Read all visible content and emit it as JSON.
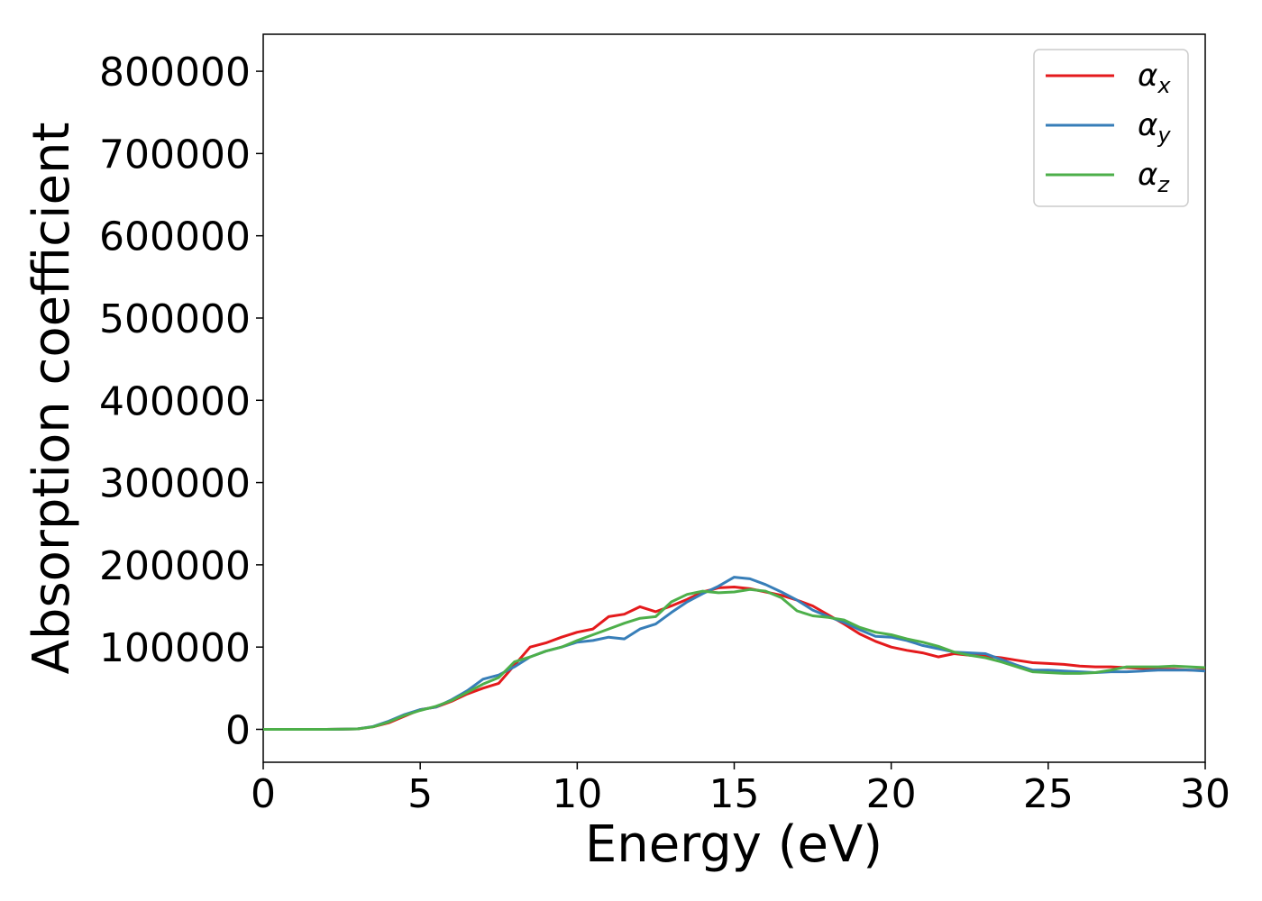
{
  "chart_data": {
    "type": "line",
    "title": "",
    "xlabel": "Energy (eV)",
    "ylabel": "Absorption coefficient",
    "xlim": [
      0,
      30
    ],
    "ylim": [
      -40000,
      845000
    ],
    "xticks": [
      0,
      5,
      10,
      15,
      20,
      25,
      30
    ],
    "yticks": [
      0,
      100000,
      200000,
      300000,
      400000,
      500000,
      600000,
      700000,
      800000
    ],
    "grid": false,
    "legend_position": "top-right",
    "x": [
      0,
      1,
      2,
      3,
      3.5,
      4,
      4.5,
      5,
      5.5,
      6,
      6.5,
      7,
      7.5,
      8,
      8.5,
      9,
      9.5,
      10,
      10.5,
      11,
      11.5,
      12,
      12.5,
      13,
      13.5,
      14,
      14.5,
      15,
      15.5,
      16,
      16.5,
      17,
      17.5,
      18,
      18.5,
      19,
      19.5,
      20,
      20.5,
      21,
      21.5,
      22,
      22.5,
      23,
      23.5,
      24,
      24.5,
      25,
      25.5,
      26,
      26.5,
      27,
      27.5,
      28,
      28.5,
      29,
      29.5,
      30
    ],
    "series": [
      {
        "name": "α",
        "subscript": "x",
        "color": "#e41a1c",
        "values": [
          0,
          0,
          0,
          500,
          3000,
          8000,
          16000,
          24000,
          27000,
          34000,
          43000,
          50000,
          56000,
          78000,
          100000,
          105000,
          112000,
          118000,
          122000,
          137000,
          140000,
          149000,
          143000,
          150000,
          158000,
          167000,
          172000,
          173000,
          171000,
          167000,
          163000,
          157000,
          150000,
          139000,
          128000,
          116000,
          107000,
          100000,
          96000,
          93000,
          88000,
          92000,
          90000,
          89000,
          87000,
          84000,
          81000,
          80000,
          79000,
          77000,
          76000,
          76000,
          75000,
          74000,
          73000,
          73000,
          72000,
          72000
        ]
      },
      {
        "name": "α",
        "subscript": "y",
        "color": "#377eb8",
        "values": [
          0,
          0,
          0,
          500,
          3500,
          10000,
          18000,
          24000,
          27000,
          36000,
          47000,
          61000,
          66000,
          76000,
          88000,
          95000,
          100000,
          106000,
          108000,
          112000,
          110000,
          122000,
          128000,
          142000,
          155000,
          165000,
          174000,
          185000,
          183000,
          176000,
          167000,
          157000,
          145000,
          137000,
          130000,
          121000,
          113000,
          112000,
          108000,
          102000,
          98000,
          94000,
          93000,
          92000,
          85000,
          78000,
          72000,
          72000,
          71000,
          70000,
          69000,
          70000,
          70000,
          71000,
          72000,
          72000,
          72000,
          71000
        ]
      },
      {
        "name": "α",
        "subscript": "z",
        "color": "#4daf4a",
        "values": [
          0,
          0,
          0,
          500,
          3000,
          9000,
          17000,
          23000,
          28000,
          35000,
          45000,
          55000,
          63000,
          82000,
          88000,
          95000,
          100000,
          108000,
          115000,
          122000,
          129000,
          135000,
          137000,
          155000,
          164000,
          168000,
          166000,
          167000,
          170000,
          168000,
          160000,
          144000,
          138000,
          136000,
          133000,
          124000,
          118000,
          115000,
          110000,
          106000,
          101000,
          94000,
          90000,
          87000,
          82000,
          76000,
          70000,
          69000,
          68000,
          68000,
          69000,
          72000,
          76000,
          76000,
          76000,
          77000,
          76000,
          75000
        ]
      }
    ]
  }
}
